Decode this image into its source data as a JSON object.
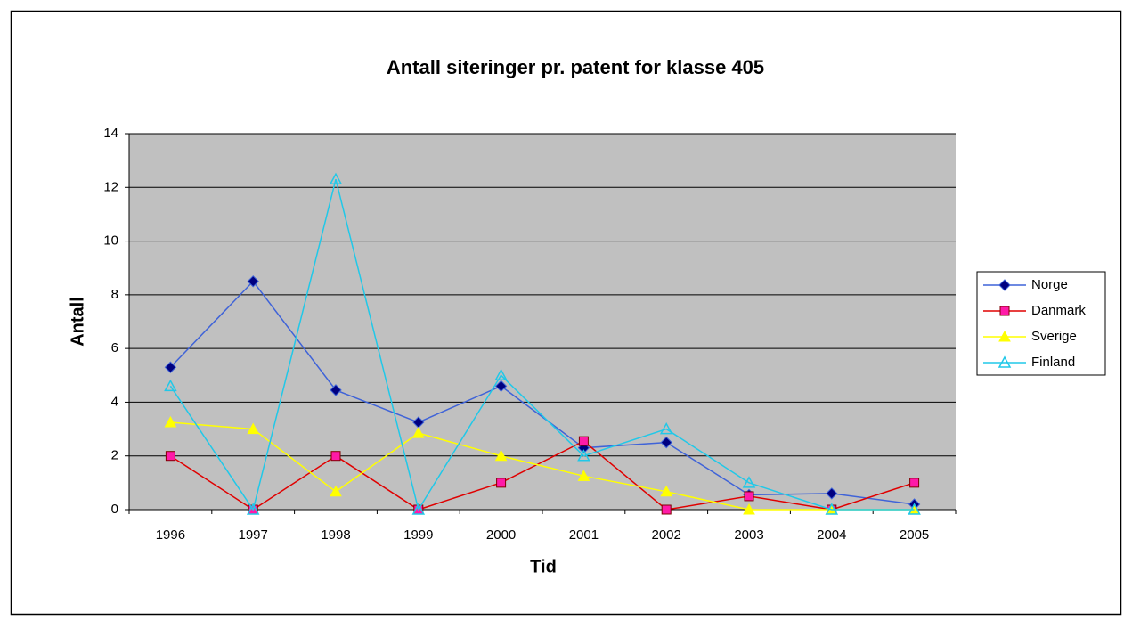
{
  "chart_data": {
    "type": "line",
    "title": "Antall siteringer pr. patent for klasse 405",
    "x_label": "Tid",
    "y_label": "Antall",
    "categories": [
      "1996",
      "1997",
      "1998",
      "1999",
      "2000",
      "2001",
      "2002",
      "2003",
      "2004",
      "2005"
    ],
    "series": [
      {
        "name": "Norge",
        "color": "#3f63d8",
        "values": [
          5.3,
          8.5,
          4.45,
          3.25,
          4.6,
          2.3,
          2.5,
          0.55,
          0.6,
          0.2
        ]
      },
      {
        "name": "Danmark",
        "color": "#e00000",
        "values": [
          2,
          0,
          2,
          0,
          1,
          2.55,
          0,
          0.5,
          0,
          1
        ]
      },
      {
        "name": "Sverige",
        "color": "#ffff00",
        "values": [
          3.25,
          3,
          0.67,
          2.85,
          2,
          1.25,
          0.67,
          0,
          0,
          0
        ]
      },
      {
        "name": "Finland",
        "color": "#20c8e8",
        "values": [
          4.6,
          0,
          12.3,
          0,
          5,
          2,
          3,
          1,
          0,
          0
        ]
      }
    ],
    "ylim": [
      0,
      14
    ],
    "yticks": [
      0,
      2,
      4,
      6,
      8,
      10,
      12,
      14
    ],
    "grid": true,
    "legend": "right"
  }
}
